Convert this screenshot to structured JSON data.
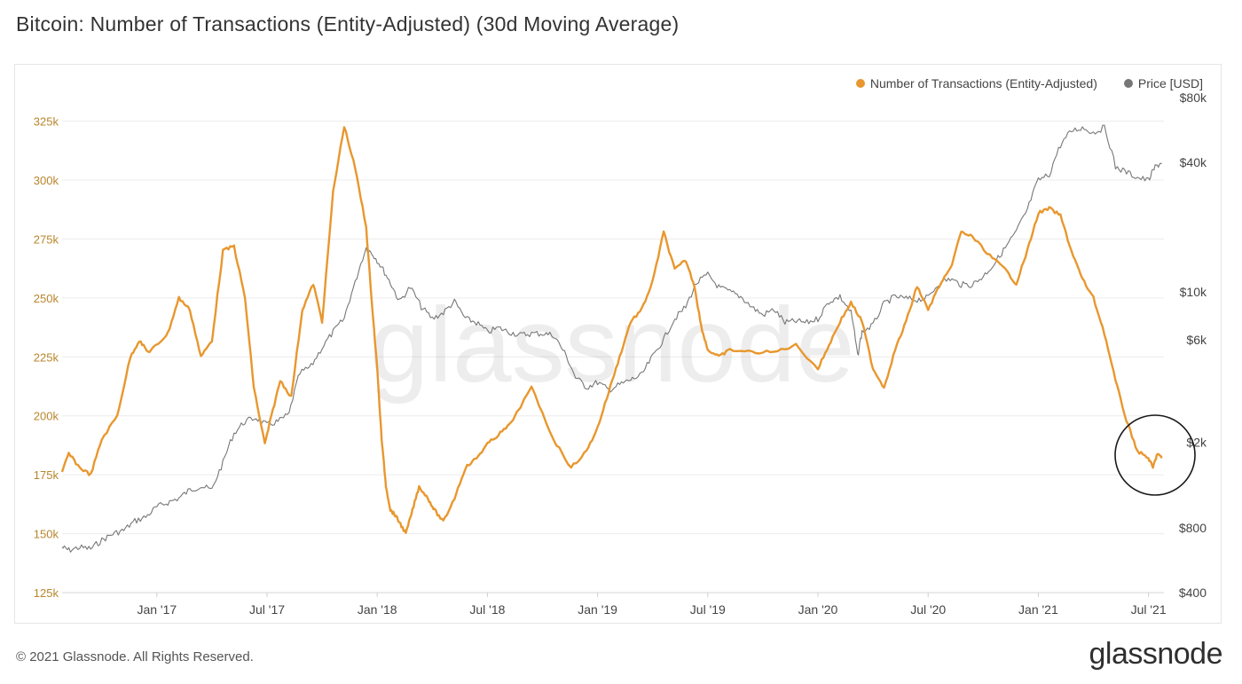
{
  "title": "Bitcoin: Number of Transactions (Entity-Adjusted) (30d Moving Average)",
  "legend": {
    "series_1": "Number of Transactions (Entity-Adjusted)",
    "series_2": "Price [USD]"
  },
  "footer": "© 2021 Glassnode. All Rights Reserved.",
  "brand": "glassnode",
  "watermark": "glassnode",
  "colors": {
    "transactions": "#e8972e",
    "price": "#777777",
    "left_axis_text": "#b8862c",
    "right_axis_text": "#444444",
    "grid": "#ececec"
  },
  "chart_data": {
    "type": "line",
    "title": "Bitcoin: Number of Transactions (Entity-Adjusted) (30d Moving Average)",
    "x_ticks": [
      "Jan '17",
      "Jul '17",
      "Jan '18",
      "Jul '18",
      "Jan '19",
      "Jul '19",
      "Jan '20",
      "Jul '20",
      "Jan '21",
      "Jul '21"
    ],
    "x_tick_positions": [
      2017.0,
      2017.5,
      2018.0,
      2018.5,
      2019.0,
      2019.5,
      2020.0,
      2020.5,
      2021.0,
      2021.5
    ],
    "x_range": [
      2016.57,
      2021.57
    ],
    "left_axis": {
      "label": "Number of Transactions (Entity-Adjusted)",
      "ylim": [
        125000,
        335000
      ],
      "ticks": [
        125000,
        150000,
        175000,
        200000,
        225000,
        250000,
        275000,
        300000,
        325000
      ],
      "tick_labels": [
        "125k",
        "150k",
        "175k",
        "200k",
        "225k",
        "250k",
        "275k",
        "300k",
        "325k"
      ]
    },
    "right_axis": {
      "label": "Price [USD]",
      "scale": "log",
      "ylim": [
        400,
        80000
      ],
      "ticks": [
        400,
        800,
        2000,
        6000,
        10000,
        40000,
        80000
      ],
      "tick_labels": [
        "$400",
        "$800",
        "$2k",
        "$6k",
        "$10k",
        "$40k",
        "$80k"
      ]
    },
    "series": [
      {
        "name": "Number of Transactions (Entity-Adjusted)",
        "axis": "left",
        "x": [
          2016.57,
          2016.6,
          2016.65,
          2016.7,
          2016.75,
          2016.82,
          2016.88,
          2016.92,
          2016.96,
          2017.0,
          2017.05,
          2017.1,
          2017.15,
          2017.2,
          2017.25,
          2017.3,
          2017.35,
          2017.4,
          2017.44,
          2017.49,
          2017.52,
          2017.56,
          2017.61,
          2017.66,
          2017.71,
          2017.75,
          2017.8,
          2017.85,
          2017.9,
          2017.95,
          2017.97,
          2018.0,
          2018.02,
          2018.04,
          2018.06,
          2018.08,
          2018.1,
          2018.13,
          2018.16,
          2018.19,
          2018.23,
          2018.26,
          2018.3,
          2018.35,
          2018.4,
          2018.45,
          2018.5,
          2018.55,
          2018.6,
          2018.7,
          2018.8,
          2018.88,
          2018.95,
          2019.0,
          2019.05,
          2019.1,
          2019.15,
          2019.2,
          2019.25,
          2019.3,
          2019.35,
          2019.4,
          2019.44,
          2019.47,
          2019.5,
          2019.55,
          2019.6,
          2019.7,
          2019.8,
          2019.9,
          2020.0,
          2020.05,
          2020.1,
          2020.15,
          2020.2,
          2020.25,
          2020.3,
          2020.35,
          2020.4,
          2020.45,
          2020.5,
          2020.55,
          2020.6,
          2020.65,
          2020.7,
          2020.78,
          2020.85,
          2020.9,
          2020.95,
          2021.0,
          2021.05,
          2021.1,
          2021.15,
          2021.2,
          2021.25,
          2021.3,
          2021.35,
          2021.4,
          2021.45,
          2021.5,
          2021.52,
          2021.54,
          2021.56
        ],
        "values": [
          176000,
          184000,
          178000,
          175000,
          190000,
          200000,
          225000,
          232000,
          227000,
          230000,
          235000,
          250000,
          245000,
          225000,
          232000,
          270000,
          272000,
          250000,
          212000,
          188000,
          200000,
          215000,
          208000,
          245000,
          256000,
          240000,
          295000,
          323000,
          305000,
          280000,
          255000,
          220000,
          190000,
          170000,
          160000,
          158000,
          155000,
          150000,
          160000,
          170000,
          165000,
          160000,
          155000,
          165000,
          178000,
          182000,
          188000,
          192000,
          196000,
          212000,
          190000,
          178000,
          185000,
          195000,
          210000,
          225000,
          240000,
          245000,
          257000,
          278000,
          262000,
          266000,
          255000,
          238000,
          228000,
          225000,
          228000,
          227000,
          227000,
          230000,
          220000,
          230000,
          240000,
          248000,
          240000,
          220000,
          212000,
          228000,
          240000,
          255000,
          245000,
          255000,
          262000,
          278000,
          276000,
          268000,
          262000,
          256000,
          270000,
          286000,
          288000,
          285000,
          270000,
          258000,
          250000,
          235000,
          215000,
          198000,
          185000,
          182000,
          178000,
          184000,
          182000
        ]
      },
      {
        "name": "Price [USD]",
        "axis": "right",
        "x": [
          2016.57,
          2016.6,
          2016.65,
          2016.7,
          2016.75,
          2016.8,
          2016.85,
          2016.9,
          2016.95,
          2017.0,
          2017.05,
          2017.1,
          2017.15,
          2017.2,
          2017.25,
          2017.3,
          2017.35,
          2017.4,
          2017.45,
          2017.5,
          2017.55,
          2017.6,
          2017.65,
          2017.7,
          2017.75,
          2017.8,
          2017.85,
          2017.9,
          2017.95,
          2017.98,
          2018.02,
          2018.06,
          2018.1,
          2018.15,
          2018.2,
          2018.25,
          2018.3,
          2018.35,
          2018.4,
          2018.45,
          2018.5,
          2018.55,
          2018.6,
          2018.65,
          2018.7,
          2018.75,
          2018.8,
          2018.85,
          2018.9,
          2018.95,
          2019.0,
          2019.05,
          2019.1,
          2019.15,
          2019.2,
          2019.25,
          2019.3,
          2019.35,
          2019.4,
          2019.45,
          2019.5,
          2019.55,
          2019.6,
          2019.65,
          2019.7,
          2019.75,
          2019.8,
          2019.85,
          2019.9,
          2019.95,
          2020.0,
          2020.05,
          2020.1,
          2020.15,
          2020.18,
          2020.2,
          2020.25,
          2020.3,
          2020.35,
          2020.4,
          2020.45,
          2020.5,
          2020.55,
          2020.6,
          2020.65,
          2020.7,
          2020.75,
          2020.8,
          2020.85,
          2020.9,
          2020.95,
          2021.0,
          2021.05,
          2021.1,
          2021.15,
          2021.2,
          2021.25,
          2021.3,
          2021.35,
          2021.4,
          2021.45,
          2021.5,
          2021.53,
          2021.56
        ],
        "values": [
          650,
          630,
          650,
          640,
          700,
          750,
          780,
          860,
          900,
          1000,
          1050,
          1100,
          1200,
          1250,
          1200,
          1600,
          2200,
          2500,
          2600,
          2400,
          2500,
          2700,
          4200,
          4500,
          5500,
          6500,
          7500,
          11000,
          16000,
          15000,
          13000,
          11000,
          9000,
          10500,
          8500,
          7500,
          8000,
          9000,
          7500,
          7200,
          6500,
          6800,
          6500,
          6300,
          6400,
          6400,
          6300,
          5200,
          4000,
          3600,
          3800,
          3500,
          3700,
          3900,
          4100,
          5000,
          6000,
          7500,
          8500,
          11000,
          12000,
          10500,
          10000,
          9500,
          8500,
          7800,
          8300,
          7200,
          7300,
          7200,
          7500,
          9000,
          9500,
          8000,
          5000,
          6500,
          7000,
          8800,
          9500,
          9300,
          9200,
          9400,
          11000,
          11500,
          10800,
          10800,
          11800,
          13500,
          16000,
          19000,
          24000,
          33000,
          35000,
          48000,
          56000,
          58000,
          55000,
          58000,
          38000,
          36000,
          34000,
          33000,
          38000,
          40000
        ]
      }
    ]
  }
}
